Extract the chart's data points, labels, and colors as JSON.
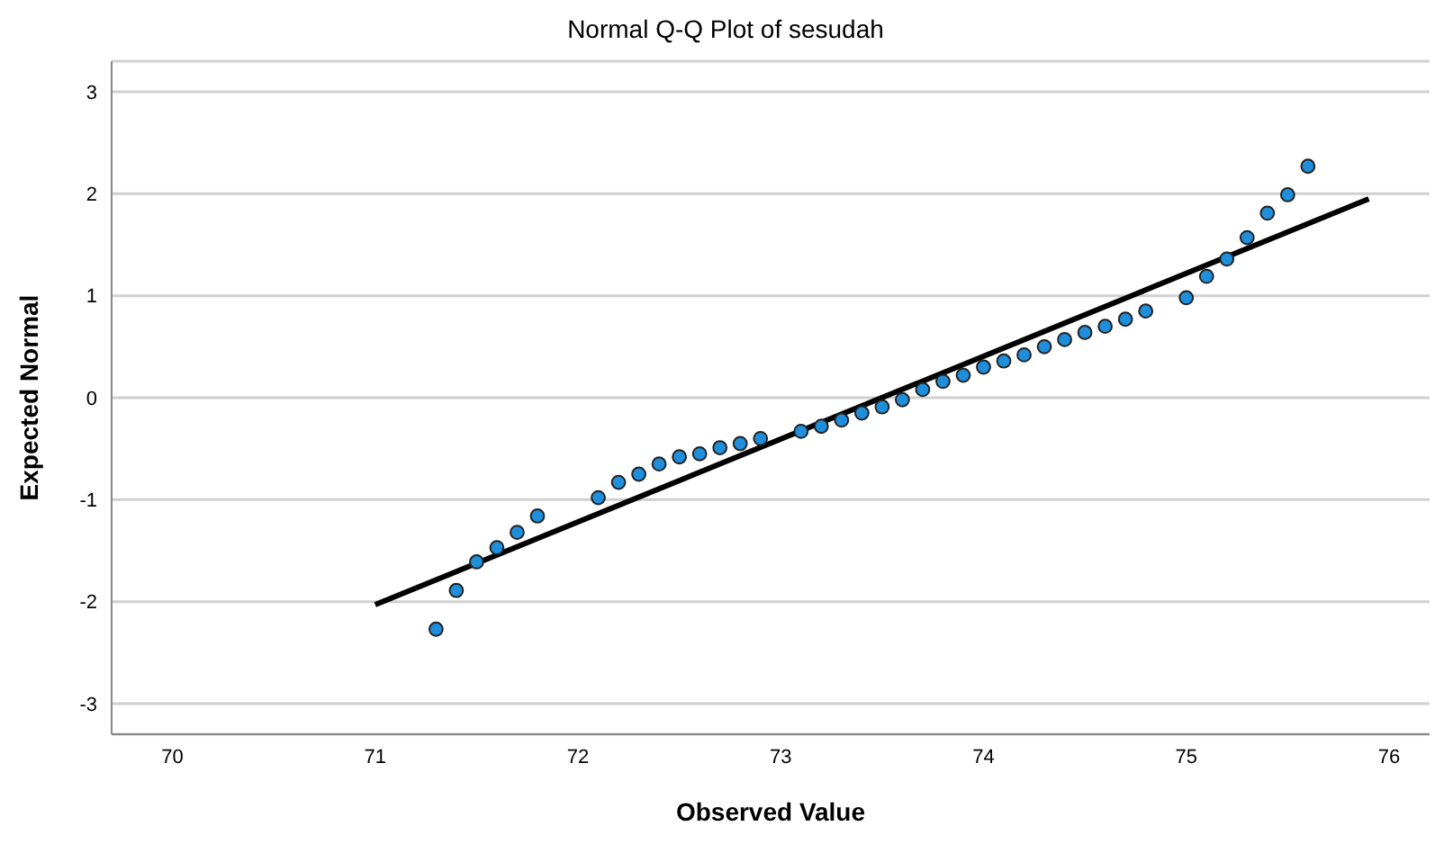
{
  "chart_data": {
    "type": "scatter",
    "title": "Normal Q-Q Plot of sesudah",
    "xlabel": "Observed Value",
    "ylabel": "Expected Normal",
    "xlim": [
      69.7,
      76.2
    ],
    "xticks": [
      70,
      71,
      72,
      73,
      74,
      75,
      76
    ],
    "ylim": [
      -3.3,
      3.3
    ],
    "yticks": [
      -3,
      -2,
      -1,
      0,
      1,
      2,
      3
    ],
    "grid": "y",
    "marker": "circle",
    "series": [
      {
        "color": "#1f8fdb",
        "x": [
          71.3,
          71.4,
          71.5,
          71.6,
          71.7,
          71.8,
          72.1,
          72.2,
          72.3,
          72.4,
          72.5,
          72.6,
          72.7,
          72.8,
          72.9,
          73.1,
          73.2,
          73.3,
          73.4,
          73.5,
          73.6,
          73.7,
          73.8,
          73.9,
          74.0,
          74.1,
          74.2,
          74.3,
          74.4,
          74.5,
          74.6,
          74.7,
          74.8,
          75.0,
          75.1,
          75.2,
          75.3,
          75.4,
          75.5,
          75.6
        ],
        "values": [
          -2.27,
          -1.89,
          -1.61,
          -1.47,
          -1.32,
          -1.16,
          -0.98,
          -0.83,
          -0.75,
          -0.65,
          -0.58,
          -0.55,
          -0.49,
          -0.45,
          -0.4,
          -0.33,
          -0.28,
          -0.22,
          -0.15,
          -0.09,
          -0.02,
          0.08,
          0.16,
          0.22,
          0.3,
          0.36,
          0.42,
          0.5,
          0.57,
          0.64,
          0.7,
          0.77,
          0.85,
          0.98,
          1.19,
          1.36,
          1.57,
          1.81,
          1.99,
          2.27
        ]
      },
      {
        "type": "line",
        "color": "#000000",
        "x": [
          71.0,
          75.9
        ],
        "values": [
          -2.03,
          1.95
        ],
        "marker": "none"
      }
    ]
  }
}
